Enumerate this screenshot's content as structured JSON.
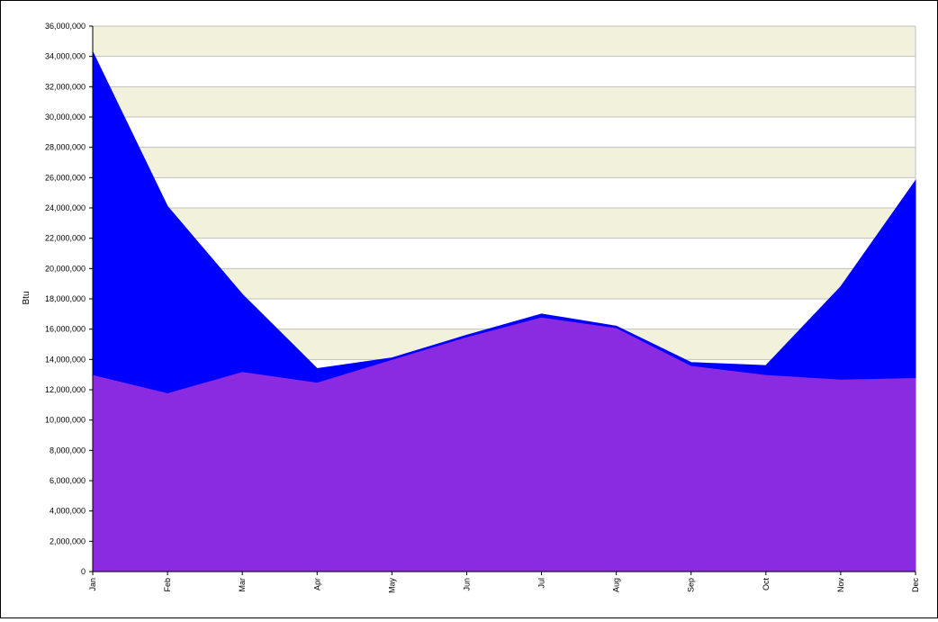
{
  "chart_data": {
    "type": "area",
    "stacked": true,
    "title": "",
    "xlabel": "",
    "ylabel": "Btu",
    "ylim": [
      0,
      36000000
    ],
    "y_ticks": [
      0,
      2000000,
      4000000,
      6000000,
      8000000,
      10000000,
      12000000,
      14000000,
      16000000,
      18000000,
      20000000,
      22000000,
      24000000,
      26000000,
      28000000,
      30000000,
      32000000,
      34000000,
      36000000
    ],
    "y_tick_labels": [
      "0",
      "2,000,000",
      "4,000,000",
      "6,000,000",
      "8,000,000",
      "10,000,000",
      "12,000,000",
      "14,000,000",
      "16,000,000",
      "18,000,000",
      "20,000,000",
      "22,000,000",
      "24,000,000",
      "26,000,000",
      "28,000,000",
      "30,000,000",
      "32,000,000",
      "34,000,000",
      "36,000,000"
    ],
    "categories": [
      "Jan",
      "Feb",
      "Mar",
      "Apr",
      "May",
      "Jun",
      "Jul",
      "Aug",
      "Sep",
      "Oct",
      "Nov",
      "Dec"
    ],
    "grid": true,
    "legend": "none",
    "plot_background": "banded",
    "series": [
      {
        "color": "#8a2be2",
        "values": [
          13000000,
          11800000,
          13200000,
          12500000,
          14000000,
          15500000,
          16800000,
          16100000,
          13600000,
          13000000,
          12700000,
          12800000
        ]
      },
      {
        "color": "#0000ff",
        "values": [
          21300000,
          12300000,
          5100000,
          900000,
          100000,
          100000,
          200000,
          100000,
          200000,
          600000,
          6100000,
          13000000
        ]
      }
    ],
    "colors": {
      "band": "#f2f2dc",
      "gridline": "#c0c0c0",
      "axis": "#000000"
    }
  }
}
